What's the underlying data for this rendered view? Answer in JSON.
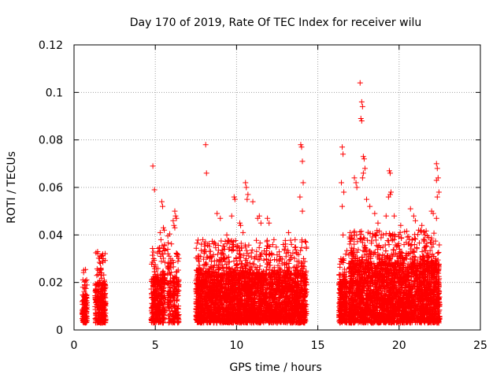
{
  "chart_data": {
    "type": "scatter",
    "title": "Day 170 of 2019, Rate Of TEC Index for receiver wilu",
    "xlabel": "GPS time / hours",
    "ylabel": "ROTI / TECUs",
    "xlim": [
      0,
      25
    ],
    "ylim": [
      0,
      0.12
    ],
    "xticks": [
      0,
      5,
      10,
      15,
      20,
      25
    ],
    "xtick_labels": [
      "0",
      "5",
      "10",
      "15",
      "20",
      "25"
    ],
    "yticks": [
      0,
      0.02,
      0.04,
      0.06,
      0.08,
      0.1,
      0.12
    ],
    "ytick_labels": [
      "0",
      "0.02",
      "0.04",
      "0.06",
      "0.08",
      "0.1",
      "0.12"
    ],
    "grid": true,
    "marker": "+",
    "color": "#ff0000",
    "series": [
      {
        "name": "ROTI",
        "clusters": [
          {
            "x_range": [
              0.5,
              0.8
            ],
            "typical_max": 0.015,
            "n": 140
          },
          {
            "x_range": [
              1.3,
              1.95
            ],
            "typical_max": 0.02,
            "n": 260
          },
          {
            "x_range": [
              4.75,
              5.6
            ],
            "typical_max": 0.022,
            "n": 360
          },
          {
            "x_range": [
              5.75,
              6.0
            ],
            "typical_max": 0.028,
            "n": 80
          },
          {
            "x_range": [
              6.05,
              6.45
            ],
            "typical_max": 0.022,
            "n": 140
          },
          {
            "x_range": [
              7.5,
              14.3
            ],
            "typical_max": 0.024,
            "n": 3300
          },
          {
            "x_range": [
              16.3,
              16.8
            ],
            "typical_max": 0.02,
            "n": 260
          },
          {
            "x_range": [
              16.9,
              22.5
            ],
            "typical_max": 0.028,
            "n": 2900
          }
        ],
        "peaks": [
          [
            0.65,
            0.019
          ],
          [
            0.55,
            0.018
          ],
          [
            1.45,
            0.033
          ],
          [
            1.6,
            0.031
          ],
          [
            1.75,
            0.029
          ],
          [
            1.8,
            0.03
          ],
          [
            1.65,
            0.026
          ],
          [
            4.85,
            0.069
          ],
          [
            4.95,
            0.059
          ],
          [
            4.9,
            0.03
          ],
          [
            5.4,
            0.054
          ],
          [
            5.45,
            0.052
          ],
          [
            5.5,
            0.043
          ],
          [
            5.3,
            0.041
          ],
          [
            5.55,
            0.042
          ],
          [
            5.35,
            0.038
          ],
          [
            6.2,
            0.05
          ],
          [
            6.25,
            0.048
          ],
          [
            6.15,
            0.044
          ],
          [
            6.3,
            0.047
          ],
          [
            6.1,
            0.046
          ],
          [
            6.2,
            0.043
          ],
          [
            6.35,
            0.032
          ],
          [
            8.1,
            0.078
          ],
          [
            8.15,
            0.066
          ],
          [
            8.8,
            0.049
          ],
          [
            9.0,
            0.047
          ],
          [
            9.4,
            0.04
          ],
          [
            9.7,
            0.048
          ],
          [
            9.85,
            0.056
          ],
          [
            9.9,
            0.055
          ],
          [
            10.2,
            0.045
          ],
          [
            10.25,
            0.044
          ],
          [
            10.4,
            0.041
          ],
          [
            10.55,
            0.062
          ],
          [
            10.6,
            0.06
          ],
          [
            10.7,
            0.057
          ],
          [
            10.65,
            0.055
          ],
          [
            11.0,
            0.054
          ],
          [
            11.3,
            0.047
          ],
          [
            11.4,
            0.048
          ],
          [
            11.5,
            0.045
          ],
          [
            11.9,
            0.047
          ],
          [
            12.0,
            0.045
          ],
          [
            12.3,
            0.038
          ],
          [
            13.2,
            0.041
          ],
          [
            13.6,
            0.038
          ],
          [
            13.95,
            0.078
          ],
          [
            14.0,
            0.077
          ],
          [
            14.05,
            0.071
          ],
          [
            14.1,
            0.062
          ],
          [
            13.9,
            0.056
          ],
          [
            14.05,
            0.05
          ],
          [
            16.5,
            0.077
          ],
          [
            16.55,
            0.074
          ],
          [
            16.45,
            0.062
          ],
          [
            16.6,
            0.058
          ],
          [
            16.5,
            0.052
          ],
          [
            16.55,
            0.04
          ],
          [
            17.25,
            0.064
          ],
          [
            17.35,
            0.062
          ],
          [
            17.4,
            0.06
          ],
          [
            17.6,
            0.104
          ],
          [
            17.7,
            0.096
          ],
          [
            17.75,
            0.094
          ],
          [
            17.65,
            0.089
          ],
          [
            17.7,
            0.088
          ],
          [
            17.8,
            0.073
          ],
          [
            17.85,
            0.072
          ],
          [
            17.9,
            0.068
          ],
          [
            17.8,
            0.066
          ],
          [
            17.75,
            0.064
          ],
          [
            18.0,
            0.055
          ],
          [
            18.2,
            0.052
          ],
          [
            18.5,
            0.049
          ],
          [
            18.7,
            0.045
          ],
          [
            19.4,
            0.067
          ],
          [
            19.45,
            0.066
          ],
          [
            19.5,
            0.058
          ],
          [
            19.45,
            0.057
          ],
          [
            19.35,
            0.056
          ],
          [
            19.2,
            0.048
          ],
          [
            19.7,
            0.048
          ],
          [
            20.1,
            0.044
          ],
          [
            20.7,
            0.051
          ],
          [
            20.9,
            0.048
          ],
          [
            21.0,
            0.046
          ],
          [
            21.2,
            0.042
          ],
          [
            21.4,
            0.044
          ],
          [
            21.6,
            0.04
          ],
          [
            22.0,
            0.05
          ],
          [
            22.1,
            0.049
          ],
          [
            22.3,
            0.07
          ],
          [
            22.35,
            0.068
          ],
          [
            22.4,
            0.064
          ],
          [
            22.3,
            0.063
          ],
          [
            22.45,
            0.058
          ],
          [
            22.35,
            0.056
          ],
          [
            22.3,
            0.047
          ]
        ]
      }
    ]
  }
}
